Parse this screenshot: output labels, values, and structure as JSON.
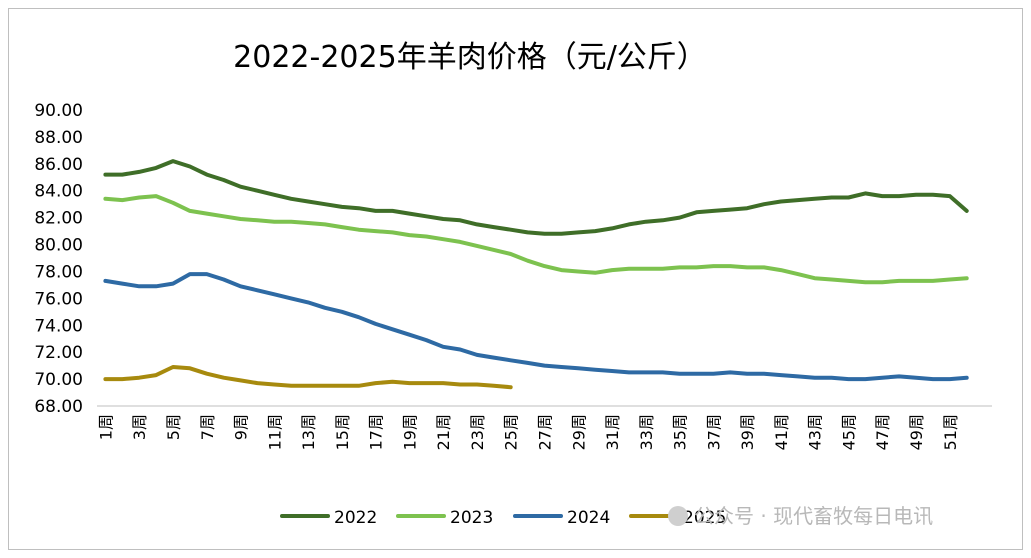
{
  "chart_data": {
    "type": "line",
    "title": "2022-2025年羊肉价格（元/公斤）",
    "xlabel": "",
    "ylabel": "",
    "ylim": [
      68,
      90
    ],
    "yticks": [
      "68.00",
      "70.00",
      "72.00",
      "74.00",
      "76.00",
      "78.00",
      "80.00",
      "82.00",
      "84.00",
      "86.00",
      "88.00",
      "90.00"
    ],
    "xtick_labels": [
      "1周",
      "3周",
      "5周",
      "7周",
      "9周",
      "11周",
      "13周",
      "15周",
      "17周",
      "19周",
      "21周",
      "23周",
      "25周",
      "27周",
      "29周",
      "31周",
      "33周",
      "35周",
      "37周",
      "39周",
      "41周",
      "43周",
      "45周",
      "47周",
      "49周",
      "51周"
    ],
    "weeks": 53,
    "legend_position": "bottom",
    "grid": false,
    "series": [
      {
        "name": "2022",
        "color": "#3f6e28",
        "values": [
          85.2,
          85.2,
          85.4,
          85.7,
          86.2,
          85.8,
          85.2,
          84.8,
          84.3,
          84.0,
          83.7,
          83.4,
          83.2,
          83.0,
          82.8,
          82.7,
          82.5,
          82.5,
          82.3,
          82.1,
          81.9,
          81.8,
          81.5,
          81.3,
          81.1,
          80.9,
          80.8,
          80.8,
          80.9,
          81.0,
          81.2,
          81.5,
          81.7,
          81.8,
          82.0,
          82.4,
          82.5,
          82.6,
          82.7,
          83.0,
          83.2,
          83.3,
          83.4,
          83.5,
          83.5,
          83.8,
          83.6,
          83.6,
          83.7,
          83.7,
          83.6,
          82.5
        ]
      },
      {
        "name": "2023",
        "color": "#7dc24f",
        "values": [
          83.4,
          83.3,
          83.5,
          83.6,
          83.1,
          82.5,
          82.3,
          82.1,
          81.9,
          81.8,
          81.7,
          81.7,
          81.6,
          81.5,
          81.3,
          81.1,
          81.0,
          80.9,
          80.7,
          80.6,
          80.4,
          80.2,
          79.9,
          79.6,
          79.3,
          78.8,
          78.4,
          78.1,
          78.0,
          77.9,
          78.1,
          78.2,
          78.2,
          78.2,
          78.3,
          78.3,
          78.4,
          78.4,
          78.3,
          78.3,
          78.1,
          77.8,
          77.5,
          77.4,
          77.3,
          77.2,
          77.2,
          77.3,
          77.3,
          77.3,
          77.4,
          77.5
        ]
      },
      {
        "name": "2024",
        "color": "#2e6aa4",
        "values": [
          77.3,
          77.1,
          76.9,
          76.9,
          77.1,
          77.8,
          77.8,
          77.4,
          76.9,
          76.6,
          76.3,
          76.0,
          75.7,
          75.3,
          75.0,
          74.6,
          74.1,
          73.7,
          73.3,
          72.9,
          72.4,
          72.2,
          71.8,
          71.6,
          71.4,
          71.2,
          71.0,
          70.9,
          70.8,
          70.7,
          70.6,
          70.5,
          70.5,
          70.5,
          70.4,
          70.4,
          70.4,
          70.5,
          70.4,
          70.4,
          70.3,
          70.2,
          70.1,
          70.1,
          70.0,
          70.0,
          70.1,
          70.2,
          70.1,
          70.0,
          70.0,
          70.1
        ]
      },
      {
        "name": "2025",
        "color": "#a78a0e",
        "values": [
          70.0,
          70.0,
          70.1,
          70.3,
          70.9,
          70.8,
          70.4,
          70.1,
          69.9,
          69.7,
          69.6,
          69.5,
          69.5,
          69.5,
          69.5,
          69.5,
          69.7,
          69.8,
          69.7,
          69.7,
          69.7,
          69.6,
          69.6,
          69.5,
          69.4
        ]
      }
    ]
  },
  "watermark": {
    "text": "公众号 · 现代畜牧每日电讯"
  }
}
